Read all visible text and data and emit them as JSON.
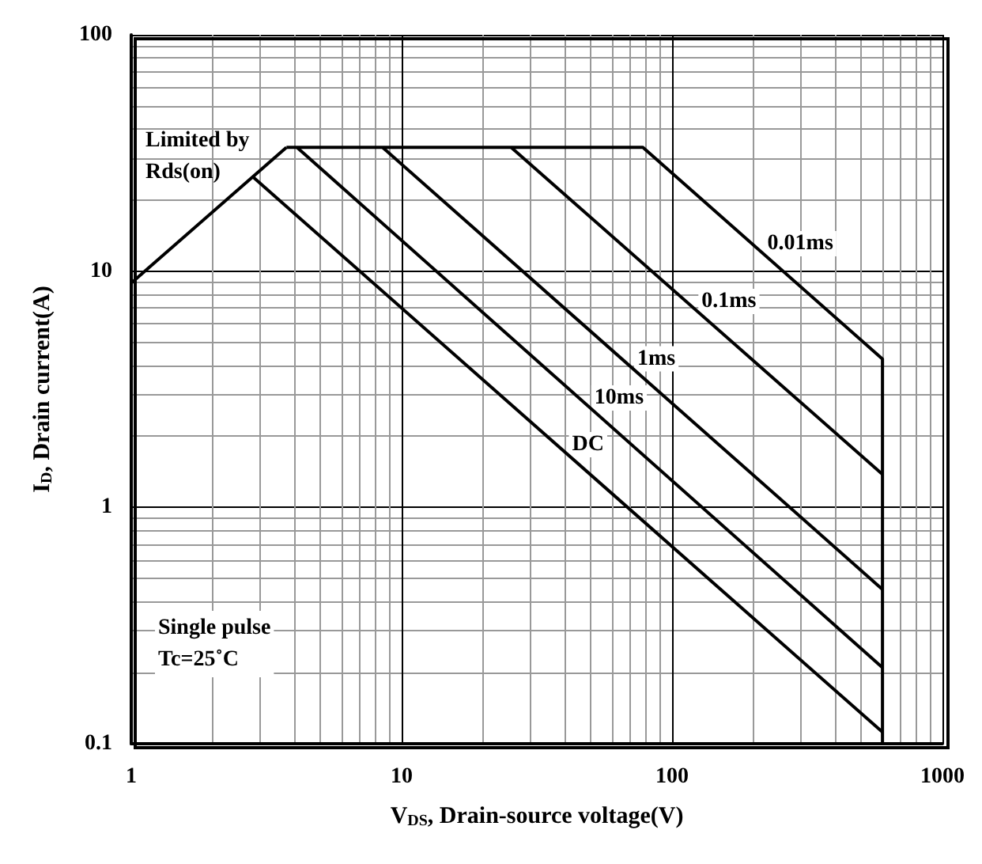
{
  "chart_data": {
    "type": "line",
    "xlabel": "V$_{DS}$, Drain-source voltage(V)",
    "ylabel": "I$_{D}$, Drain current(A)",
    "log": "xy",
    "grid": true,
    "legend": false,
    "marker": "none",
    "line_style": "solid",
    "xlim": [
      1,
      1000
    ],
    "xticks": [
      1,
      10,
      100,
      1000
    ],
    "ylim": [
      0.1,
      100
    ],
    "yticks": [
      0.1,
      1,
      10,
      100
    ],
    "series": [
      {
        "color": "#000000",
        "x": [
          1,
          3.75
        ],
        "values": [
          8.9,
          33.4
        ]
      },
      {
        "name": "0.01ms",
        "color": "#000000",
        "x": [
          3.75,
          78,
          600,
          600
        ],
        "values": [
          33.4,
          33.4,
          4.25,
          0.1
        ]
      },
      {
        "name": "0.1ms",
        "color": "#000000",
        "x": [
          25.4,
          600
        ],
        "values": [
          33.4,
          1.38
        ]
      },
      {
        "name": "1ms",
        "color": "#000000",
        "x": [
          8.5,
          600
        ],
        "values": [
          33.4,
          0.45
        ]
      },
      {
        "name": "10ms",
        "color": "#000000",
        "x": [
          4.1,
          600
        ],
        "values": [
          33.4,
          0.21
        ]
      },
      {
        "name": "DC",
        "color": "#000000",
        "x": [
          2.8,
          600
        ],
        "values": [
          25.2,
          0.112
        ]
      }
    ],
    "annotations": [
      "Limited by\nRds(on)",
      "Single pulse\nTc=25˚C"
    ]
  }
}
